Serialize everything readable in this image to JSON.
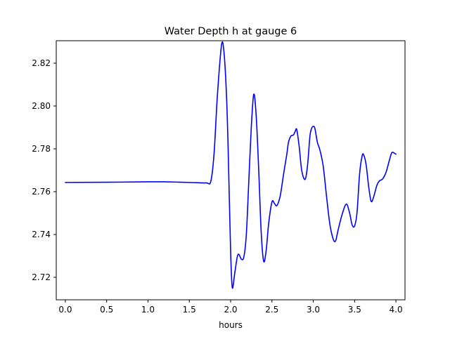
{
  "chart_data": {
    "type": "line",
    "title": "Water Depth h at gauge 6",
    "xlabel": "hours",
    "ylabel": "",
    "xlim": [
      -0.11,
      4.11
    ],
    "ylim": [
      2.7095,
      2.8305
    ],
    "xticks": [
      0.0,
      0.5,
      1.0,
      1.5,
      2.0,
      2.5,
      3.0,
      3.5,
      4.0
    ],
    "xtick_labels": [
      "0.0",
      "0.5",
      "1.0",
      "1.5",
      "2.0",
      "2.5",
      "3.0",
      "3.5",
      "4.0"
    ],
    "yticks": [
      2.72,
      2.74,
      2.76,
      2.78,
      2.8,
      2.82
    ],
    "ytick_labels": [
      "2.72",
      "2.74",
      "2.76",
      "2.78",
      "2.80",
      "2.82"
    ],
    "grid": false,
    "legend": "none",
    "series": [
      {
        "color": "#0000ff",
        "x": [
          0.0,
          0.5,
          1.0,
          1.2,
          1.5,
          1.7,
          1.76,
          1.8,
          1.84,
          1.89,
          1.92,
          1.95,
          1.97,
          2.0,
          2.02,
          2.05,
          2.08,
          2.1,
          2.13,
          2.16,
          2.19,
          2.22,
          2.25,
          2.28,
          2.31,
          2.34,
          2.37,
          2.4,
          2.43,
          2.46,
          2.5,
          2.53,
          2.56,
          2.6,
          2.64,
          2.68,
          2.7,
          2.73,
          2.76,
          2.78,
          2.8,
          2.83,
          2.86,
          2.9,
          2.93,
          2.96,
          2.98,
          3.0,
          3.02,
          3.05,
          3.08,
          3.12,
          3.16,
          3.2,
          3.24,
          3.27,
          3.3,
          3.35,
          3.4,
          3.44,
          3.47,
          3.5,
          3.53,
          3.56,
          3.59,
          3.61,
          3.64,
          3.67,
          3.7,
          3.73,
          3.77,
          3.8,
          3.84,
          3.88,
          3.92,
          3.95,
          3.98,
          4.0
        ],
        "y": [
          2.7643,
          2.7644,
          2.7646,
          2.7646,
          2.7643,
          2.7641,
          2.7648,
          2.778,
          2.805,
          2.8285,
          2.825,
          2.805,
          2.78,
          2.732,
          2.7152,
          2.722,
          2.7295,
          2.7307,
          2.7285,
          2.7295,
          2.74,
          2.765,
          2.79,
          2.8055,
          2.795,
          2.77,
          2.741,
          2.7275,
          2.7325,
          2.745,
          2.7552,
          2.7545,
          2.7535,
          2.758,
          2.768,
          2.7775,
          2.783,
          2.786,
          2.7865,
          2.788,
          2.789,
          2.781,
          2.77,
          2.7657,
          2.772,
          2.786,
          2.7895,
          2.7905,
          2.7895,
          2.783,
          2.7795,
          2.772,
          2.758,
          2.745,
          2.738,
          2.737,
          2.742,
          2.7495,
          2.7542,
          2.75,
          2.7445,
          2.744,
          2.7505,
          2.768,
          2.7765,
          2.7772,
          2.7725,
          2.7625,
          2.7555,
          2.7575,
          2.763,
          2.765,
          2.766,
          2.769,
          2.7745,
          2.7782,
          2.778,
          2.7775
        ]
      }
    ]
  }
}
